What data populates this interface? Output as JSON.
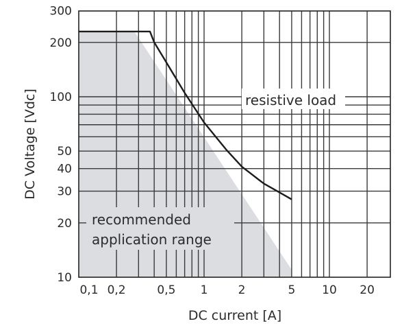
{
  "chart_data": {
    "type": "line",
    "title": "",
    "xlabel": "DC current [A]",
    "ylabel": "DC Voltage [Vdc]",
    "xscale": "log",
    "yscale": "log",
    "xlim": [
      0.1,
      30
    ],
    "ylim": [
      10,
      300
    ],
    "grid": true,
    "x_ticks": [
      0.1,
      0.2,
      0.5,
      1,
      2,
      5,
      10,
      20
    ],
    "x_tick_labels": [
      "0,1",
      "0,2",
      "0,5",
      "1",
      "2",
      "5",
      "10",
      "20"
    ],
    "y_ticks": [
      10,
      20,
      30,
      40,
      50,
      100,
      200,
      300
    ],
    "y_tick_labels": [
      "10",
      "20",
      "30",
      "40",
      "50",
      "100",
      "200",
      "300"
    ],
    "x_grid": [
      0.2,
      0.3,
      0.4,
      0.5,
      0.6,
      0.7,
      0.8,
      0.9,
      1,
      2,
      3,
      4,
      5,
      6,
      7,
      8,
      9,
      10,
      20
    ],
    "y_grid": [
      20,
      30,
      40,
      50,
      60,
      70,
      80,
      90,
      100,
      200
    ],
    "series": [
      {
        "name": "resistive load",
        "x": [
          0.1,
          0.37,
          0.4,
          0.5,
          0.7,
          1.0,
          1.5,
          2.0,
          3.0,
          4.0,
          5.0
        ],
        "values": [
          230,
          230,
          200,
          155,
          105,
          72,
          51,
          41,
          33,
          29.5,
          27
        ]
      }
    ],
    "shaded_region": {
      "name": "recommended application range",
      "polygon": [
        [
          0.1,
          10
        ],
        [
          0.1,
          228
        ],
        [
          0.28,
          228
        ],
        [
          5.0,
          11
        ],
        [
          5.0,
          10
        ]
      ],
      "color": "#dcdde0"
    },
    "annotations": [
      {
        "text": "resistive load",
        "x": 3.5,
        "y": 100
      },
      {
        "text": "recommended application range",
        "x": 0.13,
        "y": 17
      }
    ]
  },
  "labels": {
    "resistive_load": "resistive load",
    "range_line1": "recommended",
    "range_line2": "application range",
    "xlabel": "DC current [A]",
    "ylabel": "DC Voltage [Vdc]"
  }
}
